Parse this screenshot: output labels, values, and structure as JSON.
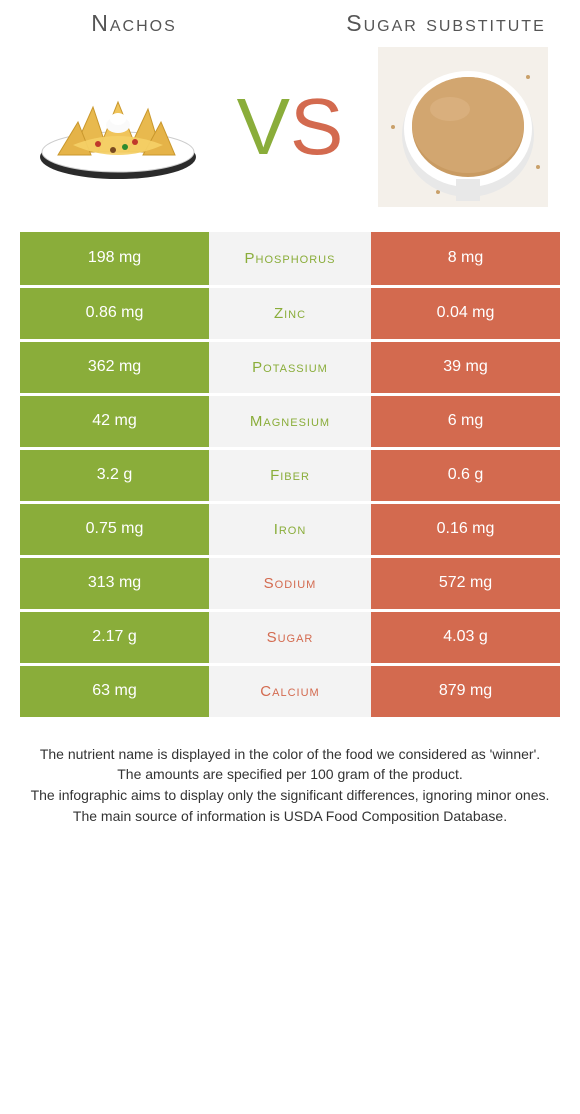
{
  "header": {
    "left_title": "Nachos",
    "right_title": "Sugar substitute"
  },
  "vs": {
    "v": "V",
    "s": "S"
  },
  "colors": {
    "left": "#8aad3a",
    "right": "#d36a4f",
    "mid_bg": "#f3f3f3"
  },
  "table": {
    "rows": [
      {
        "label": "Phosphorus",
        "left": "198 mg",
        "right": "8 mg",
        "winner": "left"
      },
      {
        "label": "Zinc",
        "left": "0.86 mg",
        "right": "0.04 mg",
        "winner": "left"
      },
      {
        "label": "Potassium",
        "left": "362 mg",
        "right": "39 mg",
        "winner": "left"
      },
      {
        "label": "Magnesium",
        "left": "42 mg",
        "right": "6 mg",
        "winner": "left"
      },
      {
        "label": "Fiber",
        "left": "3.2 g",
        "right": "0.6 g",
        "winner": "left"
      },
      {
        "label": "Iron",
        "left": "0.75 mg",
        "right": "0.16 mg",
        "winner": "left"
      },
      {
        "label": "Sodium",
        "left": "313 mg",
        "right": "572 mg",
        "winner": "right"
      },
      {
        "label": "Sugar",
        "left": "2.17 g",
        "right": "4.03 g",
        "winner": "right"
      },
      {
        "label": "Calcium",
        "left": "63 mg",
        "right": "879 mg",
        "winner": "right"
      }
    ]
  },
  "footer": {
    "line1": "The nutrient name is displayed in the color of the food we considered as 'winner'.",
    "line2": "The amounts are specified per 100 gram of the product.",
    "line3": "The infographic aims to display only the significant differences, ignoring minor ones.",
    "line4": "The main source of information is USDA Food Composition Database."
  }
}
